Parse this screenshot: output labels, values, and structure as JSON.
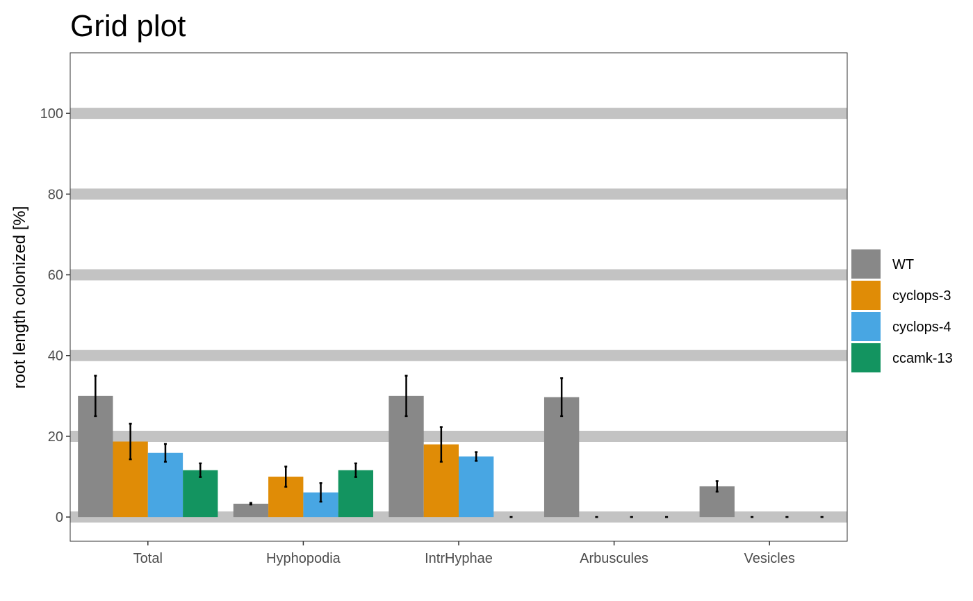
{
  "chart_data": {
    "type": "bar",
    "title": "Grid plot",
    "xlabel": "",
    "ylabel": "root length colonized [%]",
    "ylim": [
      -6,
      115
    ],
    "yticks": [
      0,
      20,
      40,
      60,
      80,
      100
    ],
    "grid": "horizontal gray bands at major y ticks",
    "legend_position": "right",
    "categories": [
      "Total",
      "Hyphopodia",
      "IntrHyphae",
      "Arbuscules",
      "Vesicles"
    ],
    "series": [
      {
        "name": "WT",
        "color": "#888888",
        "values": [
          30,
          3.3,
          30,
          29.7,
          7.6
        ],
        "errors": [
          5,
          0.2,
          5,
          4.7,
          1.3
        ]
      },
      {
        "name": "cyclops-3",
        "color": "#E08C06",
        "values": [
          18.7,
          10,
          18,
          0,
          0
        ],
        "errors": [
          4.4,
          2.5,
          4.3,
          0,
          0
        ]
      },
      {
        "name": "cyclops-4",
        "color": "#48A6E3",
        "values": [
          15.9,
          6.1,
          15,
          0,
          0
        ],
        "errors": [
          2.2,
          2.3,
          1.1,
          0,
          0
        ]
      },
      {
        "name": "ccamk-13",
        "color": "#139460",
        "values": [
          11.6,
          11.6,
          0,
          0,
          0
        ],
        "errors": [
          1.7,
          1.7,
          0,
          0,
          0
        ]
      }
    ]
  }
}
